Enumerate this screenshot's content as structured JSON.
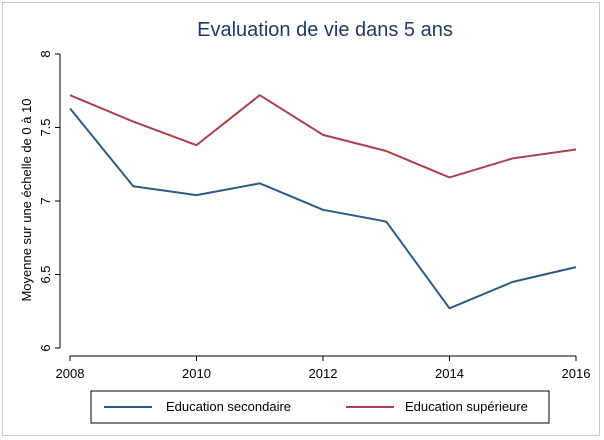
{
  "chart_data": {
    "type": "line",
    "title": "Evaluation de vie dans 5 ans",
    "ylabel": "Moyenne sur une échelle de 0 à 10",
    "xlabel": "",
    "x": [
      2008,
      2009,
      2010,
      2011,
      2012,
      2013,
      2014,
      2015,
      2016
    ],
    "xlim": [
      2008,
      2016
    ],
    "ylim": [
      6,
      8
    ],
    "x_ticks": [
      "2008",
      "2010",
      "2012",
      "2014",
      "2016"
    ],
    "y_ticks": [
      "6",
      "6.5",
      "7",
      "7.5",
      "8"
    ],
    "grid": false,
    "legend_position": "bottom",
    "series": [
      {
        "name": "Education secondaire",
        "color": "#2f5a85",
        "values": [
          7.63,
          7.1,
          7.04,
          7.12,
          6.94,
          6.86,
          6.27,
          6.45,
          6.55
        ]
      },
      {
        "name": "Education supérieure",
        "color": "#a8404f",
        "values": [
          7.72,
          7.54,
          7.38,
          7.72,
          7.45,
          7.34,
          7.16,
          7.29,
          7.35
        ]
      }
    ]
  }
}
